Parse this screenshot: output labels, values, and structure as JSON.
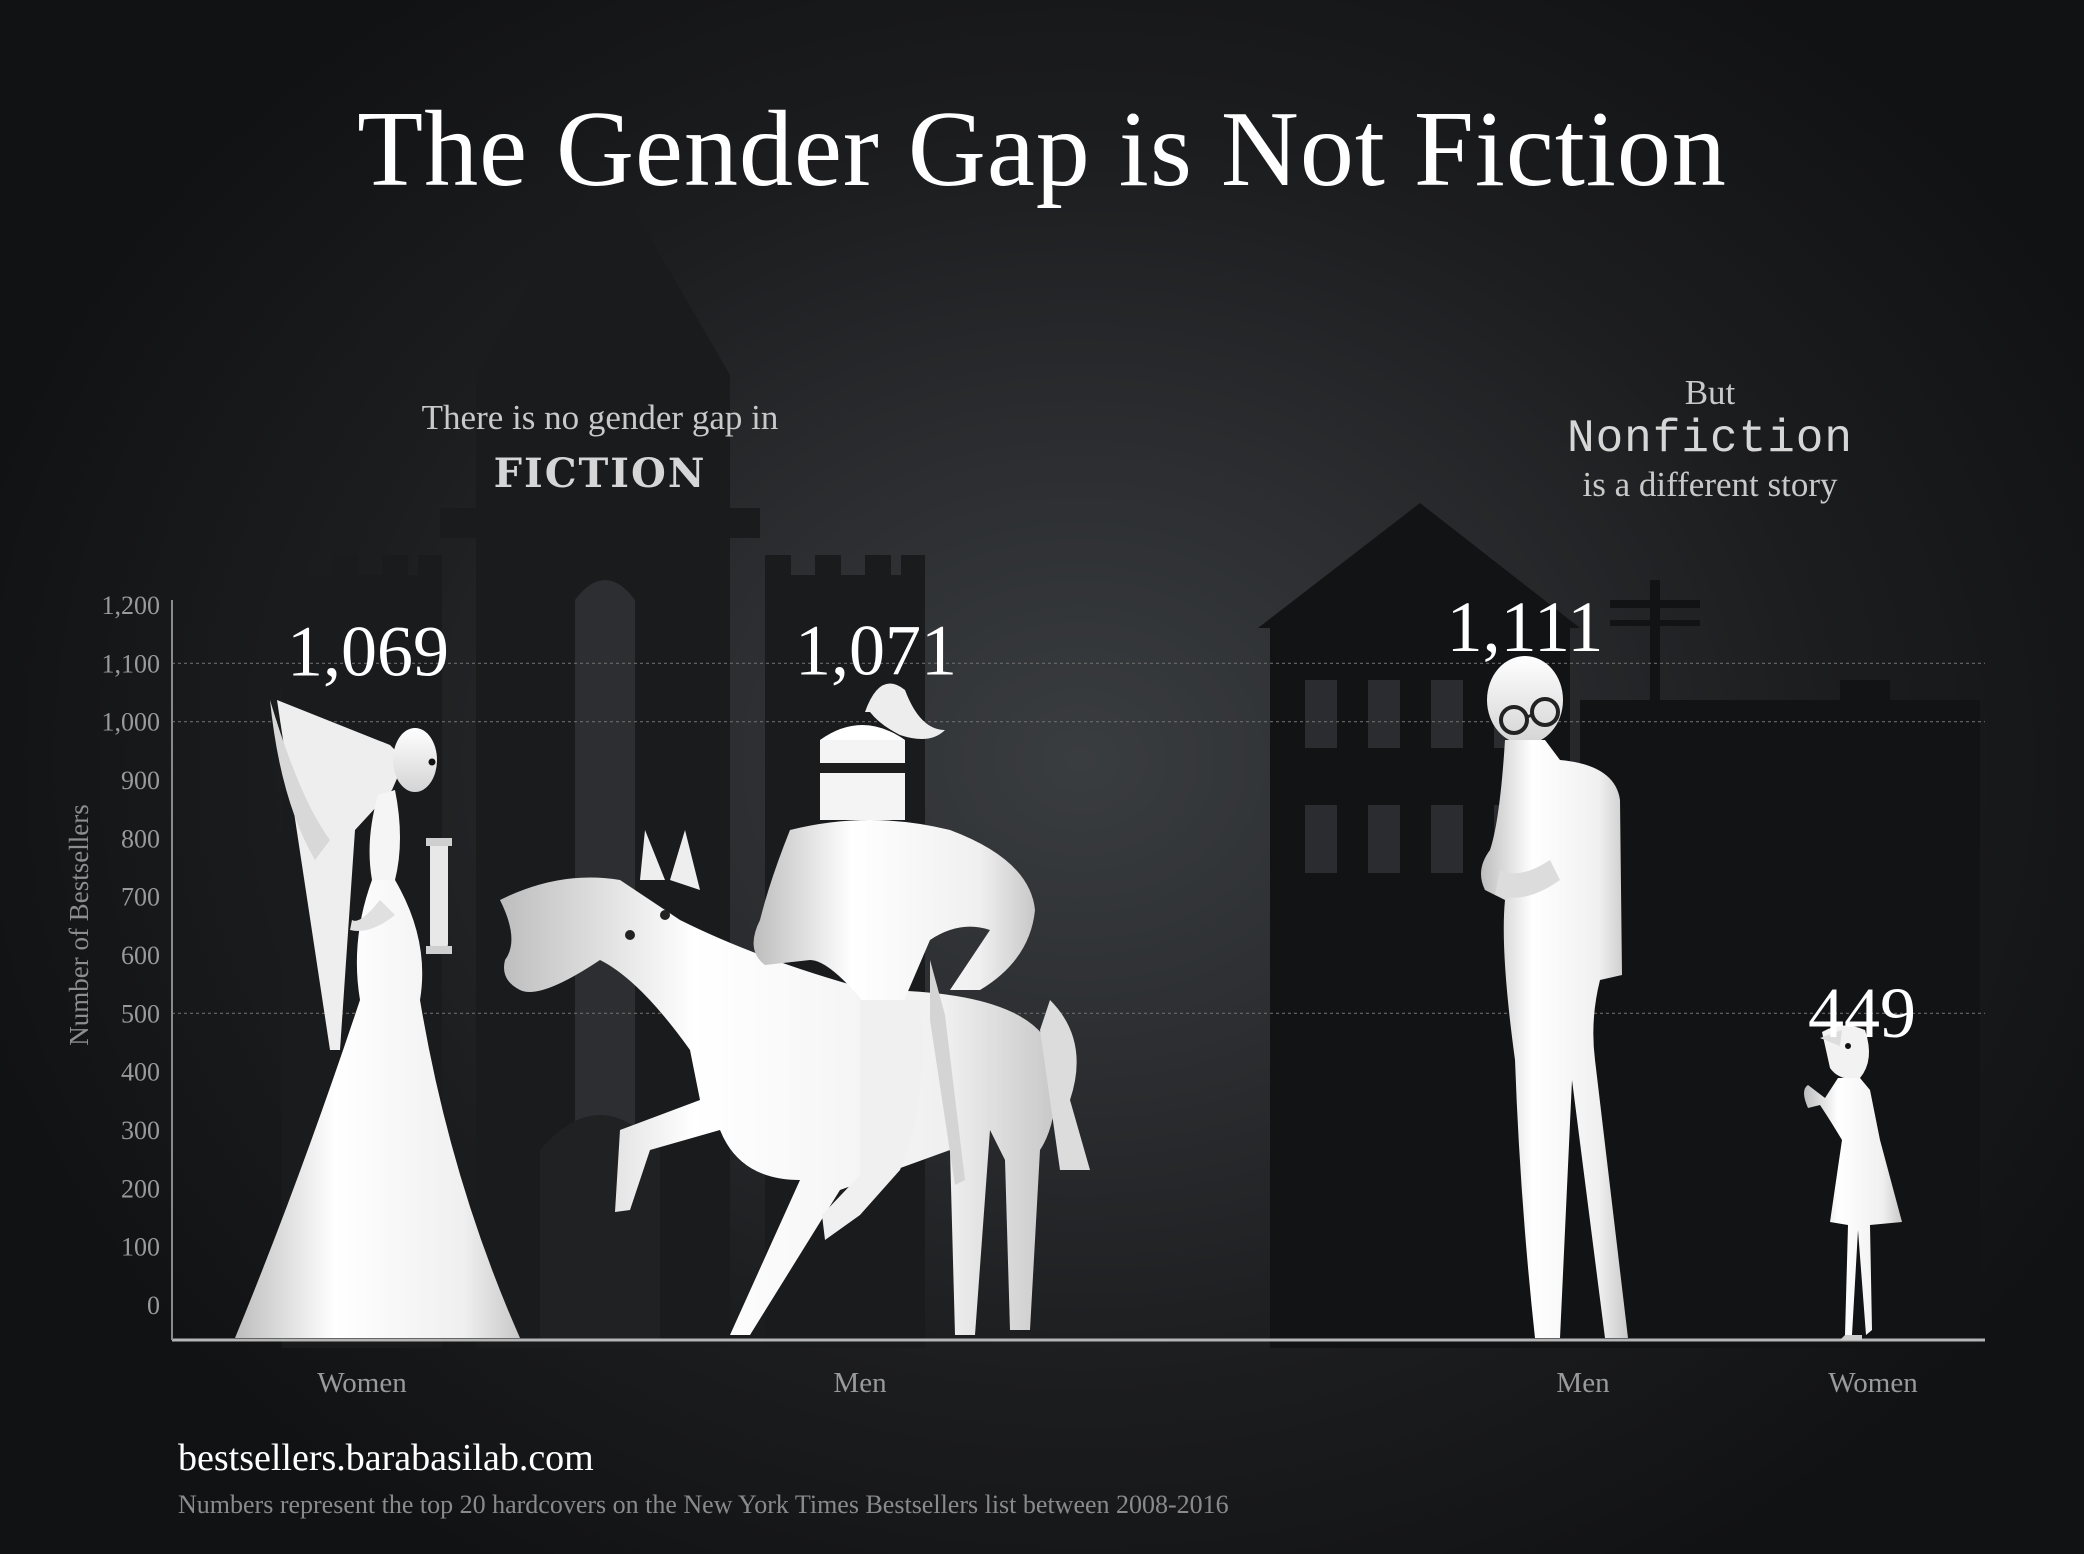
{
  "title": "The Gender Gap is Not Fiction",
  "annotations": {
    "fiction_line1": "There is no gender gap in",
    "fiction_word": "FICTION",
    "nonfiction_line1": "But",
    "nonfiction_word": "Nonfiction",
    "nonfiction_line3": "is a different story"
  },
  "footer": {
    "url": "bestsellers.barabasilab.com",
    "note": "Numbers represent the top 20 hardcovers on the New York Times Bestsellers list between 2008-2016"
  },
  "colors": {
    "background": "#17181a",
    "figure": "#f2f2f2",
    "axis": "#9a9a9a",
    "silhouette": "#0f1011"
  },
  "chart_data": {
    "type": "bar",
    "ylabel": "Number of Bestsellers",
    "ylim": [
      0,
      1200
    ],
    "yticks": [
      0,
      100,
      200,
      300,
      400,
      500,
      600,
      700,
      800,
      900,
      1000,
      1100,
      1200
    ],
    "ytick_labels": [
      "0",
      "100",
      "200",
      "300",
      "400",
      "500",
      "600",
      "700",
      "800",
      "900",
      "1,000",
      "1,100",
      "1,200"
    ],
    "grid_lines": [
      500,
      1000,
      1100
    ],
    "categories": [
      "Women",
      "Men",
      "Men",
      "Women"
    ],
    "groups": [
      "Fiction",
      "Fiction",
      "Nonfiction",
      "Nonfiction"
    ],
    "values": [
      1069,
      1071,
      1111,
      449
    ],
    "value_labels": [
      "1,069",
      "1,071",
      "1,111",
      "449"
    ],
    "icons": [
      "lady-figure-icon",
      "knight-on-horse-icon",
      "professor-figure-icon",
      "girl-figure-icon"
    ]
  }
}
